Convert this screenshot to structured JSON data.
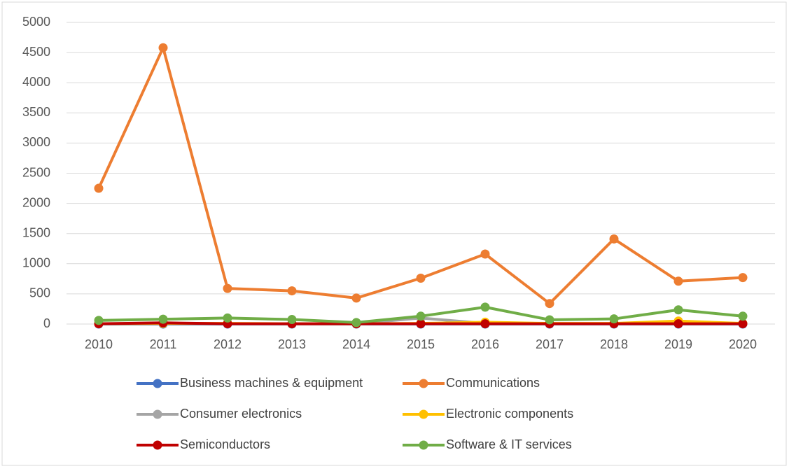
{
  "chart_data": {
    "type": "line",
    "categories": [
      "2010",
      "2011",
      "2012",
      "2013",
      "2014",
      "2015",
      "2016",
      "2017",
      "2018",
      "2019",
      "2020"
    ],
    "series": [
      {
        "name": "Business machines & equipment",
        "color": "#4472c4",
        "values": [
          0,
          0,
          0,
          0,
          0,
          0,
          0,
          0,
          0,
          0,
          0
        ]
      },
      {
        "name": "Communications",
        "color": "#ed7d31",
        "values": [
          2250,
          4580,
          590,
          550,
          430,
          760,
          1160,
          340,
          1410,
          710,
          770
        ]
      },
      {
        "name": "Consumer electronics",
        "color": "#a5a5a5",
        "values": [
          5,
          10,
          5,
          5,
          5,
          100,
          10,
          5,
          5,
          5,
          5
        ]
      },
      {
        "name": "Electronic components",
        "color": "#ffc000",
        "values": [
          5,
          10,
          10,
          5,
          5,
          10,
          30,
          10,
          10,
          50,
          10
        ]
      },
      {
        "name": "Semiconductors",
        "color": "#c00000",
        "values": [
          5,
          20,
          5,
          5,
          5,
          5,
          5,
          5,
          5,
          5,
          5
        ]
      },
      {
        "name": "Software & IT services",
        "color": "#70ad47",
        "values": [
          60,
          80,
          100,
          75,
          25,
          130,
          280,
          70,
          85,
          235,
          130
        ]
      }
    ],
    "ylim": [
      0,
      5000
    ],
    "yticks": [
      0,
      500,
      1000,
      1500,
      2000,
      2500,
      3000,
      3500,
      4000,
      4500,
      5000
    ],
    "grid": true,
    "legend": "bottom"
  }
}
